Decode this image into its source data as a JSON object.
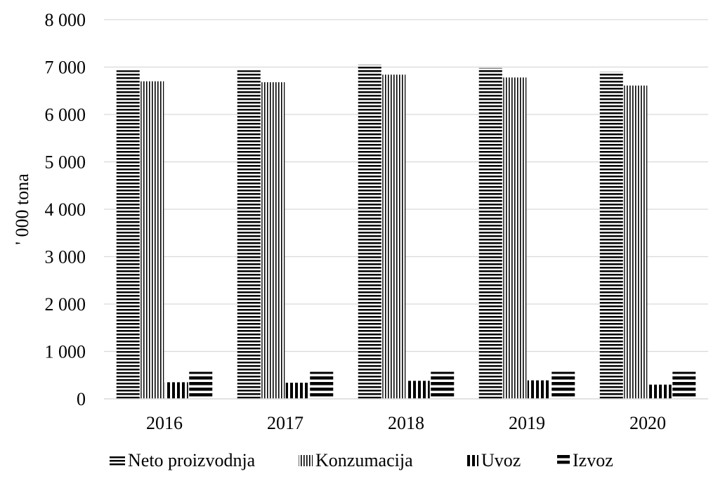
{
  "chart_data": {
    "type": "bar",
    "ylabel": "' 000 tona",
    "xlabel": "",
    "title": "",
    "ylim": [
      0,
      8000
    ],
    "yticks": [
      0,
      1000,
      2000,
      3000,
      4000,
      5000,
      6000,
      7000,
      8000
    ],
    "ytick_labels": [
      "0",
      "1 000",
      "2 000",
      "3 000",
      "4 000",
      "5 000",
      "6 000",
      "7 000",
      "8 000"
    ],
    "categories": [
      "2016",
      "2017",
      "2018",
      "2019",
      "2020"
    ],
    "grid": true,
    "legend_position": "bottom",
    "series": [
      {
        "name": "Neto proizvodnja",
        "pattern": "thin-horizontal",
        "values": [
          6930,
          6930,
          7050,
          6980,
          6900
        ]
      },
      {
        "name": "Konzumacija",
        "pattern": "thin-vertical",
        "values": [
          6700,
          6680,
          6840,
          6780,
          6610
        ]
      },
      {
        "name": "Uvoz",
        "pattern": "thick-vertical",
        "values": [
          350,
          340,
          380,
          390,
          300
        ]
      },
      {
        "name": "Izvoz",
        "pattern": "thick-horizontal",
        "values": [
          570,
          570,
          570,
          570,
          570
        ]
      }
    ],
    "colors": {
      "ink": "#000000",
      "grid": "#d9d9d9"
    }
  }
}
